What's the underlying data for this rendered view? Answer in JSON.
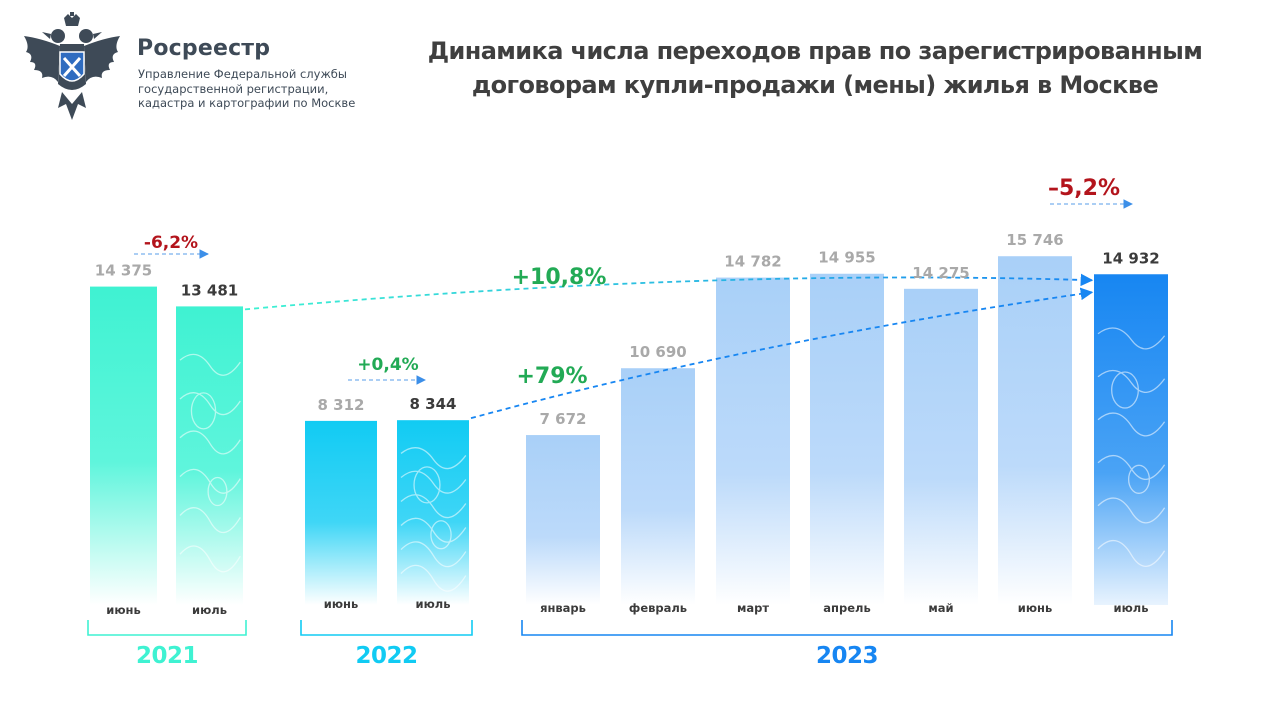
{
  "org": {
    "name": "Росреестр",
    "desc_lines": [
      "Управление Федеральной службы",
      "государственной регистрации,",
      "кадастра и картографии по Москве"
    ]
  },
  "title_lines": [
    "Динамика числа переходов прав по зарегистрированным",
    "договорам купли-продажи (мены) жилья в Москве"
  ],
  "colors": {
    "y2021": "#3ff2d2",
    "y2022": "#11cbf3",
    "y2023": "#a9d0f8",
    "highlight": "#1786f2",
    "positive": "#22aa55",
    "negative": "#b3141c",
    "value_muted": "#a9a9a9",
    "value_dark": "#3b3b3b"
  },
  "chart_data": {
    "type": "bar",
    "groups": [
      {
        "year": "2021",
        "bars": [
          {
            "month": "июнь",
            "value": 14375,
            "label": "14 375"
          },
          {
            "month": "июль",
            "value": 13481,
            "label": "13 481"
          }
        ]
      },
      {
        "year": "2022",
        "bars": [
          {
            "month": "июнь",
            "value": 8312,
            "label": "8 312"
          },
          {
            "month": "июль",
            "value": 8344,
            "label": "8 344"
          }
        ]
      },
      {
        "year": "2023",
        "bars": [
          {
            "month": "январь",
            "value": 7672,
            "label": "7 672"
          },
          {
            "month": "февраль",
            "value": 10690,
            "label": "10 690"
          },
          {
            "month": "март",
            "value": 14782,
            "label": "14 782"
          },
          {
            "month": "апрель",
            "value": 14955,
            "label": "14 955"
          },
          {
            "month": "май",
            "value": 14275,
            "label": "14 275"
          },
          {
            "month": "июнь",
            "value": 15746,
            "label": "15 746"
          },
          {
            "month": "июль",
            "value": 14932,
            "label": "14 932"
          }
        ]
      }
    ],
    "changes": [
      {
        "label": "-6,2%",
        "kind": "month-over-month",
        "group": "2021"
      },
      {
        "label": "+0,4%",
        "kind": "month-over-month",
        "group": "2022"
      },
      {
        "label": "–5,2%",
        "kind": "month-over-month",
        "group": "2023"
      },
      {
        "label": "+10,8%",
        "kind": "year-over-year",
        "from": "2021 июль",
        "to": "2023 июль"
      },
      {
        "label": "+79%",
        "kind": "year-over-year",
        "from": "2022 июль",
        "to": "2023 июль"
      }
    ],
    "title": "Динамика числа переходов прав по зарегистрированным договорам купли-продажи (мены) жилья в Москве",
    "xlabel": "",
    "ylabel": "",
    "ylim": [
      0,
      16500
    ],
    "grid": false,
    "legend": "none"
  }
}
